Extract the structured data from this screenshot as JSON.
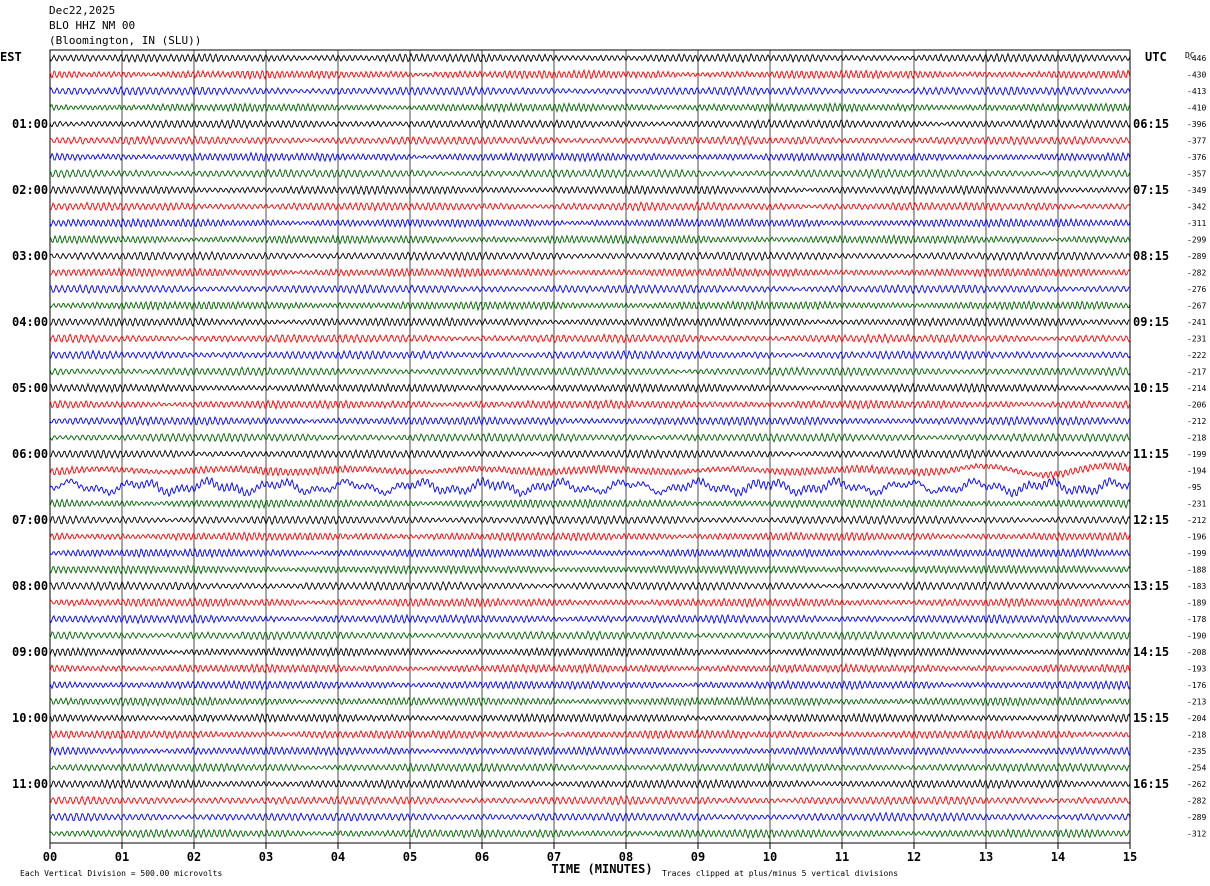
{
  "header": {
    "date": "Dec22,2025",
    "channel": "BLO HHZ NM 00",
    "location": "(Bloomington, IN (SLU))"
  },
  "colors": [
    "#000000",
    "#ff0000",
    "#0000ff",
    "#006400"
  ],
  "chart_data": {
    "type": "line",
    "title": "",
    "xlabel": "TIME (MINUTES)",
    "ylabel": "",
    "x_ticks": [
      "00",
      "01",
      "02",
      "03",
      "04",
      "05",
      "06",
      "07",
      "08",
      "09",
      "10",
      "11",
      "12",
      "13",
      "14",
      "15"
    ],
    "xlim": [
      0,
      15
    ],
    "grid": "vertical lines at each minute",
    "left_axis_title": "EST",
    "right_axis_title": "UTC",
    "dc_title": "DC",
    "est_labels": [
      "01:00",
      "02:00",
      "03:00",
      "04:00",
      "05:00",
      "06:00",
      "07:00",
      "08:00",
      "09:00",
      "10:00",
      "11:00"
    ],
    "utc_labels": [
      "06:15",
      "07:15",
      "08:15",
      "09:15",
      "10:15",
      "11:15",
      "12:15",
      "13:15",
      "14:15",
      "15:15",
      "16:15"
    ],
    "trace_count": 48,
    "trace_color_cycle": [
      "black",
      "red",
      "blue",
      "green"
    ],
    "dc_offsets": [
      "-446",
      "-430",
      "-413",
      "-410",
      "-396",
      "-377",
      "-376",
      "-357",
      "-349",
      "-342",
      "-311",
      "-299",
      "-289",
      "-282",
      "-276",
      "-267",
      "-241",
      "-231",
      "-222",
      "-217",
      "-214",
      "-206",
      "-212",
      "-218",
      "-199",
      "-194",
      "-95",
      "-231",
      "-212",
      "-196",
      "-199",
      "-188",
      "-183",
      "-189",
      "-178",
      "-190",
      "-208",
      "-193",
      "-176",
      "-213",
      "-204",
      "-218",
      "-235",
      "-254",
      "-262",
      "-282",
      "-289",
      "-312"
    ],
    "footer_left": "Each Vertical Division =  500.00 microvolts",
    "footer_right": "Traces clipped at plus/minus 5 vertical divisions"
  }
}
